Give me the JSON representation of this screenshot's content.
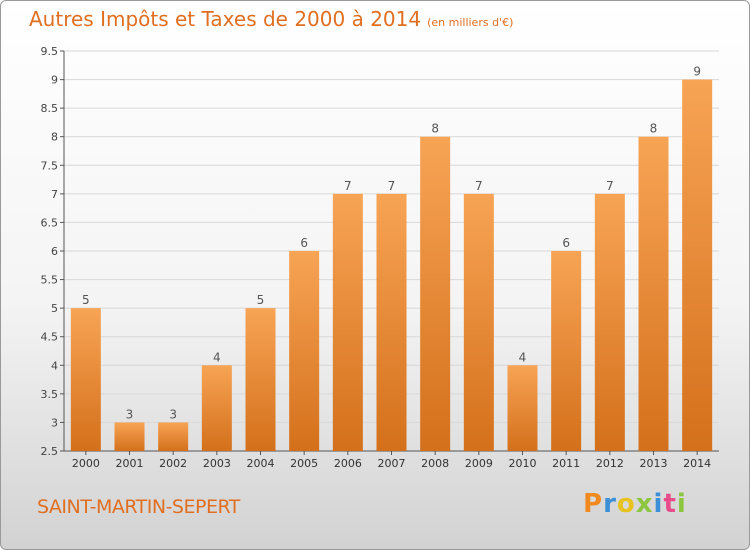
{
  "header": {
    "title": "Autres Impôts et Taxes de 2000 à 2014",
    "unit": "(en milliers d'€)"
  },
  "footer": {
    "commune": "SAINT-MARTIN-SEPERT",
    "logo_text": "Proxiti",
    "logo_colors": [
      "#f08a1e",
      "#3b8fd6",
      "#e8c21e",
      "#8cc63f",
      "#3b8fd6",
      "#e84c8b",
      "#8cc63f"
    ]
  },
  "colors": {
    "accent": "#e06f22",
    "bar_top": "#f7a455",
    "bar_bottom": "#d4701b",
    "grid": "#d8d8d8"
  },
  "chart_data": {
    "type": "bar",
    "categories": [
      "2000",
      "2001",
      "2002",
      "2003",
      "2004",
      "2005",
      "2006",
      "2007",
      "2008",
      "2009",
      "2010",
      "2011",
      "2012",
      "2013",
      "2014"
    ],
    "values": [
      5,
      3,
      3,
      4,
      5,
      6,
      7,
      7,
      8,
      7,
      4,
      6,
      7,
      8,
      9
    ],
    "ylim": [
      2.5,
      9.5
    ],
    "yticks": [
      2.5,
      3,
      3.5,
      4,
      4.5,
      5,
      5.5,
      6,
      6.5,
      7,
      7.5,
      8,
      8.5,
      9,
      9.5
    ],
    "grid": true,
    "data_labels": true
  }
}
